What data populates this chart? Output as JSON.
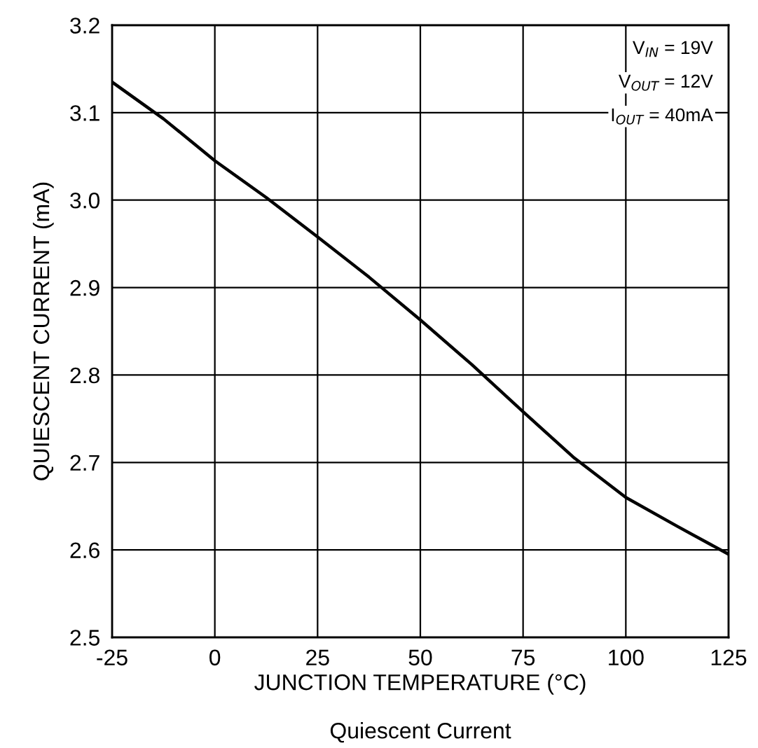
{
  "chart_data": {
    "type": "line",
    "xlabel": "JUNCTION TEMPERATURE (°C)",
    "ylabel": "QUIESCENT CURRENT (mA)",
    "x": [
      -25,
      -12.5,
      0,
      12.5,
      25,
      37.5,
      50,
      62.5,
      75,
      87.5,
      100,
      112.5,
      125
    ],
    "series": [
      {
        "color": "#000000",
        "values": [
          3.135,
          3.093,
          3.045,
          3.003,
          2.958,
          2.912,
          2.863,
          2.812,
          2.758,
          2.705,
          2.66,
          2.627,
          2.595
        ]
      }
    ],
    "xlim": [
      -25,
      125
    ],
    "xticks": [
      -25,
      0,
      25,
      50,
      75,
      100,
      125
    ],
    "ylim": [
      2.5,
      3.2
    ],
    "yticks": [
      {
        "value": 2.5,
        "label": "2.5"
      },
      {
        "value": 2.6,
        "label": "2.6"
      },
      {
        "value": 2.7,
        "label": "2.7"
      },
      {
        "value": 2.8,
        "label": "2.8"
      },
      {
        "value": 2.9,
        "label": "2.9"
      },
      {
        "value": 3.0,
        "label": "3.0"
      },
      {
        "value": 3.1,
        "label": "3.1"
      },
      {
        "value": 3.2,
        "label": "3.2"
      }
    ],
    "grid": true,
    "marker": "none",
    "line_style": "solid",
    "annotations": [
      "V$_{IN}$ = 19V",
      "V$_{OUT}$ = 12V",
      "I$_{OUT}$ = 40mA",
      "Quiescent Current"
    ]
  }
}
